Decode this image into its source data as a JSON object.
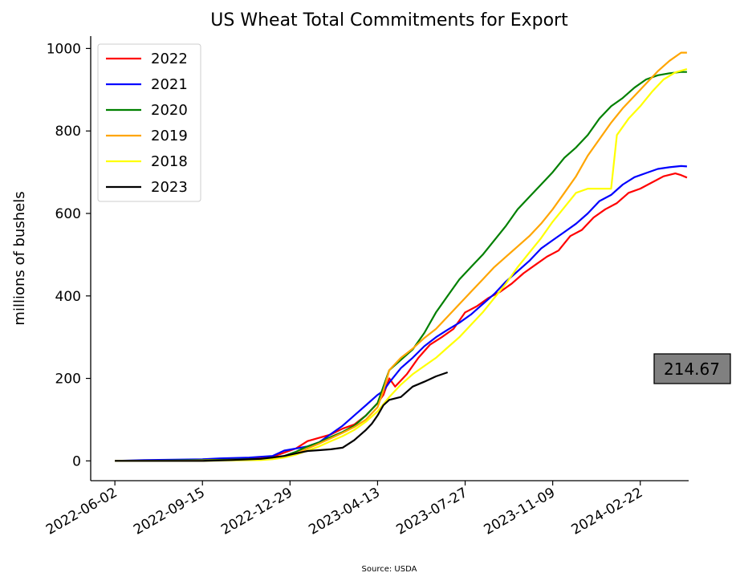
{
  "chart_data": {
    "type": "line",
    "title": "US Wheat Total Commitments for Export",
    "xlabel": "",
    "ylabel": "millions of bushels",
    "source": "Source: USDA",
    "x_ticks": [
      "2022-06-02",
      "2022-09-15",
      "2022-12-29",
      "2023-04-13",
      "2023-07-27",
      "2023-11-09",
      "2024-02-22"
    ],
    "y_ticks": [
      0,
      200,
      400,
      600,
      800,
      1000
    ],
    "ylim": [
      -48,
      1030
    ],
    "xlim": [
      "2022-05-04",
      "2024-04-20"
    ],
    "grid": false,
    "legend_position": "top-left",
    "callout": {
      "text": "214.67",
      "background": "#808080"
    },
    "series": [
      {
        "name": "2022",
        "color": "#ff0000",
        "points": [
          [
            "2022-06-02",
            0
          ],
          [
            "2022-07-07",
            0
          ],
          [
            "2022-08-11",
            0
          ],
          [
            "2022-09-15",
            0
          ],
          [
            "2022-10-20",
            4
          ],
          [
            "2022-11-24",
            8
          ],
          [
            "2022-12-08",
            10
          ],
          [
            "2022-12-22",
            20
          ],
          [
            "2023-01-05",
            30
          ],
          [
            "2023-01-19",
            48
          ],
          [
            "2023-02-02",
            56
          ],
          [
            "2023-02-16",
            64
          ],
          [
            "2023-03-02",
            78
          ],
          [
            "2023-03-16",
            88
          ],
          [
            "2023-03-30",
            110
          ],
          [
            "2023-04-13",
            140
          ],
          [
            "2023-04-20",
            160
          ],
          [
            "2023-04-27",
            200
          ],
          [
            "2023-05-04",
            180
          ],
          [
            "2023-05-18",
            210
          ],
          [
            "2023-06-01",
            250
          ],
          [
            "2023-06-15",
            282
          ],
          [
            "2023-06-29",
            300
          ],
          [
            "2023-07-13",
            320
          ],
          [
            "2023-07-27",
            360
          ],
          [
            "2023-08-10",
            375
          ],
          [
            "2023-08-24",
            395
          ],
          [
            "2023-09-07",
            410
          ],
          [
            "2023-09-21",
            430
          ],
          [
            "2023-10-05",
            455
          ],
          [
            "2023-10-19",
            475
          ],
          [
            "2023-11-02",
            495
          ],
          [
            "2023-11-16",
            510
          ],
          [
            "2023-11-30",
            545
          ],
          [
            "2023-12-14",
            560
          ],
          [
            "2023-12-28",
            590
          ],
          [
            "2024-01-11",
            610
          ],
          [
            "2024-01-25",
            625
          ],
          [
            "2024-02-08",
            650
          ],
          [
            "2024-02-22",
            660
          ],
          [
            "2024-03-07",
            675
          ],
          [
            "2024-03-21",
            690
          ],
          [
            "2024-04-04",
            697
          ],
          [
            "2024-04-11",
            693
          ],
          [
            "2024-04-18",
            687
          ]
        ]
      },
      {
        "name": "2021",
        "color": "#0000ff",
        "points": [
          [
            "2022-06-02",
            0
          ],
          [
            "2022-07-07",
            2
          ],
          [
            "2022-08-11",
            3
          ],
          [
            "2022-09-15",
            4
          ],
          [
            "2022-10-06",
            6
          ],
          [
            "2022-11-10",
            8
          ],
          [
            "2022-12-08",
            12
          ],
          [
            "2022-12-22",
            25
          ],
          [
            "2023-01-05",
            30
          ],
          [
            "2023-01-19",
            35
          ],
          [
            "2023-02-02",
            45
          ],
          [
            "2023-02-16",
            65
          ],
          [
            "2023-03-02",
            85
          ],
          [
            "2023-03-16",
            110
          ],
          [
            "2023-03-30",
            135
          ],
          [
            "2023-04-13",
            160
          ],
          [
            "2023-04-20",
            170
          ],
          [
            "2023-04-27",
            190
          ],
          [
            "2023-05-11",
            225
          ],
          [
            "2023-05-25",
            250
          ],
          [
            "2023-06-08",
            278
          ],
          [
            "2023-06-22",
            300
          ],
          [
            "2023-07-06",
            318
          ],
          [
            "2023-07-20",
            335
          ],
          [
            "2023-08-03",
            355
          ],
          [
            "2023-08-17",
            380
          ],
          [
            "2023-08-31",
            405
          ],
          [
            "2023-09-14",
            435
          ],
          [
            "2023-09-28",
            460
          ],
          [
            "2023-10-12",
            485
          ],
          [
            "2023-10-26",
            515
          ],
          [
            "2023-11-09",
            535
          ],
          [
            "2023-11-23",
            555
          ],
          [
            "2023-12-07",
            575
          ],
          [
            "2023-12-21",
            600
          ],
          [
            "2024-01-04",
            630
          ],
          [
            "2024-01-18",
            645
          ],
          [
            "2024-02-01",
            670
          ],
          [
            "2024-02-15",
            688
          ],
          [
            "2024-02-29",
            698
          ],
          [
            "2024-03-14",
            708
          ],
          [
            "2024-03-28",
            712
          ],
          [
            "2024-04-11",
            715
          ],
          [
            "2024-04-18",
            714
          ]
        ]
      },
      {
        "name": "2020",
        "color": "#008000",
        "points": [
          [
            "2022-06-02",
            0
          ],
          [
            "2022-07-07",
            0
          ],
          [
            "2022-08-11",
            1
          ],
          [
            "2022-09-15",
            2
          ],
          [
            "2022-10-20",
            3
          ],
          [
            "2022-11-24",
            5
          ],
          [
            "2022-12-08",
            8
          ],
          [
            "2022-12-22",
            12
          ],
          [
            "2023-01-05",
            22
          ],
          [
            "2023-01-19",
            35
          ],
          [
            "2023-02-02",
            45
          ],
          [
            "2023-02-16",
            58
          ],
          [
            "2023-03-02",
            70
          ],
          [
            "2023-03-16",
            85
          ],
          [
            "2023-03-30",
            110
          ],
          [
            "2023-04-13",
            140
          ],
          [
            "2023-04-20",
            180
          ],
          [
            "2023-04-27",
            220
          ],
          [
            "2023-05-11",
            245
          ],
          [
            "2023-05-25",
            270
          ],
          [
            "2023-06-08",
            310
          ],
          [
            "2023-06-22",
            360
          ],
          [
            "2023-07-06",
            400
          ],
          [
            "2023-07-20",
            440
          ],
          [
            "2023-08-03",
            470
          ],
          [
            "2023-08-17",
            500
          ],
          [
            "2023-08-31",
            535
          ],
          [
            "2023-09-14",
            570
          ],
          [
            "2023-09-28",
            610
          ],
          [
            "2023-10-12",
            640
          ],
          [
            "2023-10-26",
            670
          ],
          [
            "2023-11-09",
            700
          ],
          [
            "2023-11-23",
            735
          ],
          [
            "2023-12-07",
            760
          ],
          [
            "2023-12-21",
            790
          ],
          [
            "2024-01-04",
            830
          ],
          [
            "2024-01-18",
            860
          ],
          [
            "2024-02-01",
            880
          ],
          [
            "2024-02-15",
            905
          ],
          [
            "2024-02-29",
            925
          ],
          [
            "2024-03-14",
            935
          ],
          [
            "2024-03-28",
            940
          ],
          [
            "2024-04-11",
            943
          ],
          [
            "2024-04-18",
            943
          ]
        ]
      },
      {
        "name": "2019",
        "color": "#ffa500",
        "points": [
          [
            "2022-06-02",
            0
          ],
          [
            "2022-07-07",
            0
          ],
          [
            "2022-08-11",
            0
          ],
          [
            "2022-09-15",
            1
          ],
          [
            "2022-10-20",
            2
          ],
          [
            "2022-11-24",
            3
          ],
          [
            "2022-12-08",
            5
          ],
          [
            "2022-12-22",
            10
          ],
          [
            "2023-01-05",
            18
          ],
          [
            "2023-01-19",
            30
          ],
          [
            "2023-02-02",
            42
          ],
          [
            "2023-02-16",
            55
          ],
          [
            "2023-03-02",
            68
          ],
          [
            "2023-03-16",
            82
          ],
          [
            "2023-03-30",
            100
          ],
          [
            "2023-04-13",
            130
          ],
          [
            "2023-04-20",
            170
          ],
          [
            "2023-04-27",
            220
          ],
          [
            "2023-05-11",
            250
          ],
          [
            "2023-05-25",
            272
          ],
          [
            "2023-06-08",
            298
          ],
          [
            "2023-06-22",
            320
          ],
          [
            "2023-07-06",
            350
          ],
          [
            "2023-07-20",
            380
          ],
          [
            "2023-08-03",
            410
          ],
          [
            "2023-08-17",
            440
          ],
          [
            "2023-08-31",
            470
          ],
          [
            "2023-09-14",
            495
          ],
          [
            "2023-09-28",
            520
          ],
          [
            "2023-10-12",
            545
          ],
          [
            "2023-10-26",
            575
          ],
          [
            "2023-11-09",
            610
          ],
          [
            "2023-11-23",
            650
          ],
          [
            "2023-12-07",
            690
          ],
          [
            "2023-12-21",
            740
          ],
          [
            "2024-01-04",
            780
          ],
          [
            "2024-01-18",
            820
          ],
          [
            "2024-02-01",
            855
          ],
          [
            "2024-02-15",
            885
          ],
          [
            "2024-02-29",
            915
          ],
          [
            "2024-03-14",
            945
          ],
          [
            "2024-03-28",
            970
          ],
          [
            "2024-04-11",
            990
          ],
          [
            "2024-04-18",
            990
          ]
        ]
      },
      {
        "name": "2018",
        "color": "#ffff00",
        "points": [
          [
            "2022-06-02",
            0
          ],
          [
            "2022-07-07",
            0
          ],
          [
            "2022-08-11",
            0
          ],
          [
            "2022-09-15",
            0
          ],
          [
            "2022-10-20",
            1
          ],
          [
            "2022-11-24",
            2
          ],
          [
            "2022-12-08",
            4
          ],
          [
            "2022-12-22",
            8
          ],
          [
            "2023-01-05",
            15
          ],
          [
            "2023-01-19",
            25
          ],
          [
            "2023-02-02",
            35
          ],
          [
            "2023-02-16",
            48
          ],
          [
            "2023-03-02",
            60
          ],
          [
            "2023-03-16",
            75
          ],
          [
            "2023-03-30",
            95
          ],
          [
            "2023-04-13",
            120
          ],
          [
            "2023-04-27",
            155
          ],
          [
            "2023-05-11",
            185
          ],
          [
            "2023-05-25",
            210
          ],
          [
            "2023-06-08",
            230
          ],
          [
            "2023-06-22",
            250
          ],
          [
            "2023-07-06",
            275
          ],
          [
            "2023-07-20",
            300
          ],
          [
            "2023-08-03",
            330
          ],
          [
            "2023-08-17",
            360
          ],
          [
            "2023-08-31",
            395
          ],
          [
            "2023-09-14",
            430
          ],
          [
            "2023-09-28",
            470
          ],
          [
            "2023-10-12",
            505
          ],
          [
            "2023-10-26",
            540
          ],
          [
            "2023-11-09",
            580
          ],
          [
            "2023-11-23",
            615
          ],
          [
            "2023-12-07",
            650
          ],
          [
            "2023-12-21",
            660
          ],
          [
            "2024-01-04",
            660
          ],
          [
            "2024-01-18",
            660
          ],
          [
            "2024-01-25",
            790
          ],
          [
            "2024-02-08",
            830
          ],
          [
            "2024-02-22",
            860
          ],
          [
            "2024-03-07",
            895
          ],
          [
            "2024-03-21",
            925
          ],
          [
            "2024-04-04",
            942
          ],
          [
            "2024-04-18",
            950
          ]
        ]
      },
      {
        "name": "2023",
        "color": "#000000",
        "points": [
          [
            "2022-06-02",
            0
          ],
          [
            "2022-07-07",
            0
          ],
          [
            "2022-08-11",
            0
          ],
          [
            "2022-09-15",
            0
          ],
          [
            "2022-10-20",
            2
          ],
          [
            "2022-11-24",
            5
          ],
          [
            "2022-12-08",
            8
          ],
          [
            "2022-12-22",
            12
          ],
          [
            "2023-01-05",
            18
          ],
          [
            "2023-01-19",
            24
          ],
          [
            "2023-02-02",
            26
          ],
          [
            "2023-02-16",
            28
          ],
          [
            "2023-03-02",
            32
          ],
          [
            "2023-03-16",
            50
          ],
          [
            "2023-03-30",
            75
          ],
          [
            "2023-04-06",
            90
          ],
          [
            "2023-04-13",
            110
          ],
          [
            "2023-04-20",
            135
          ],
          [
            "2023-04-27",
            148
          ],
          [
            "2023-05-11",
            155
          ],
          [
            "2023-05-25",
            180
          ],
          [
            "2023-06-08",
            192
          ],
          [
            "2023-06-22",
            205
          ],
          [
            "2023-07-06",
            214.67
          ]
        ]
      }
    ]
  }
}
